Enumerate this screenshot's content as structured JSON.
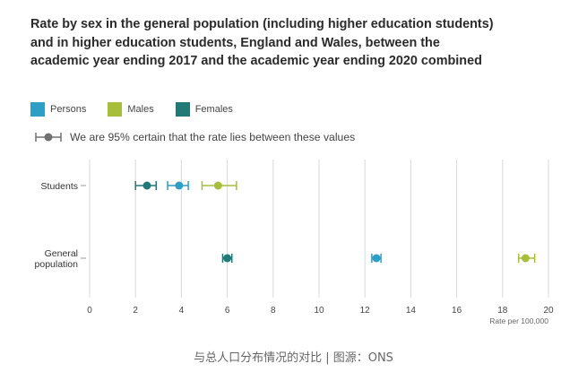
{
  "chart_data": {
    "type": "dot-errorbar",
    "title": "Rate by sex in the general population (including higher education students) and in higher education students, England and Wales, between the academic year ending 2017 and the academic year ending 2020 combined",
    "legend": [
      {
        "name": "Persons",
        "color": "#2e9ec4"
      },
      {
        "name": "Males",
        "color": "#a7be3b"
      },
      {
        "name": "Females",
        "color": "#227a76"
      }
    ],
    "ci_note": "We are 95% certain that the rate lies between these values",
    "ci_color": "#707070",
    "categories": [
      {
        "label_lines": [
          "Students"
        ]
      },
      {
        "label_lines": [
          "General",
          "population"
        ]
      }
    ],
    "series": [
      {
        "name": "Persons",
        "color": "#2e9ec4",
        "points": [
          {
            "category": 0,
            "value": 3.9,
            "lower": 3.4,
            "upper": 4.3
          },
          {
            "category": 1,
            "value": 12.5,
            "lower": 12.3,
            "upper": 12.7
          }
        ]
      },
      {
        "name": "Males",
        "color": "#a7be3b",
        "points": [
          {
            "category": 0,
            "value": 5.6,
            "lower": 4.9,
            "upper": 6.4
          },
          {
            "category": 1,
            "value": 19.0,
            "lower": 18.7,
            "upper": 19.4
          }
        ]
      },
      {
        "name": "Females",
        "color": "#227a76",
        "points": [
          {
            "category": 0,
            "value": 2.5,
            "lower": 2.0,
            "upper": 2.9
          },
          {
            "category": 1,
            "value": 6.0,
            "lower": 5.8,
            "upper": 6.2
          }
        ]
      }
    ],
    "xlim": [
      0,
      20
    ],
    "xticks": [
      "0",
      "2",
      "4",
      "6",
      "8",
      "10",
      "12",
      "14",
      "16",
      "18",
      "20"
    ],
    "xlabel": "Rate per 100,000",
    "grid": true
  },
  "caption": "与总人口分布情况的对比 | 图源：ONS"
}
